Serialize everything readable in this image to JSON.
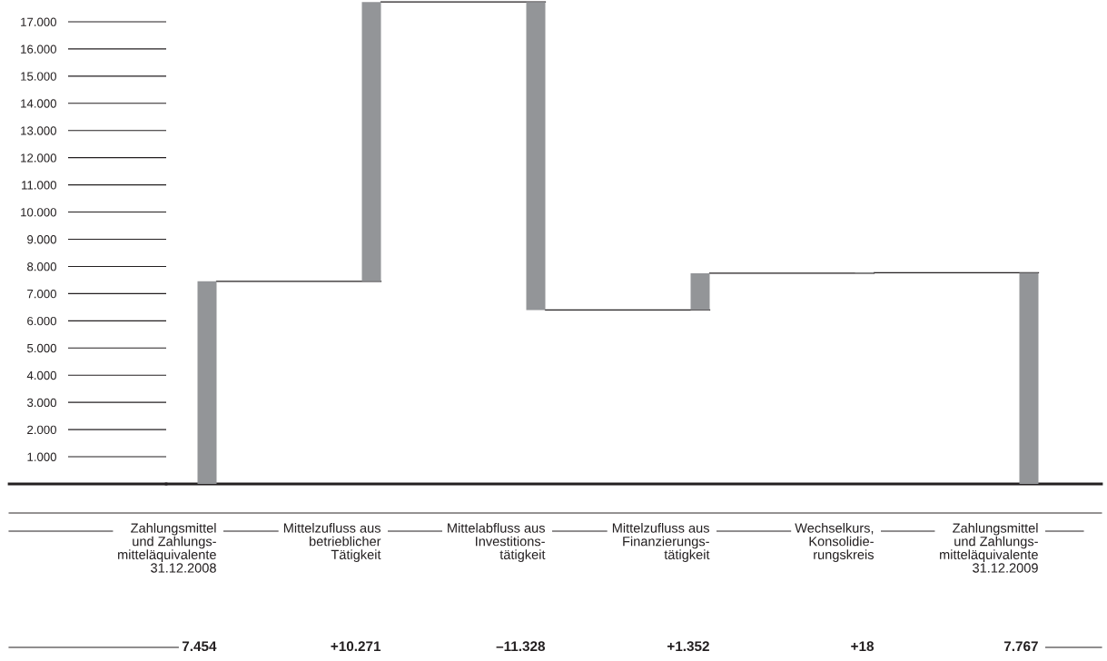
{
  "chart_data": {
    "type": "bar",
    "categories": [
      "Zahlungsmittel\nund Zahlungs-\nmitteläquivalente\n31.12.2008",
      "Mittelzufluss aus\nbetrieblicher\nTätigkeit",
      "Mittelabfluss aus\nInvestitions-\ntätigkeit",
      "Mittelzufluss aus\nFinanzierungs-\ntätigkeit",
      "Wechselkurs,\nKonsolidie-\nrungskreis",
      "Zahlungsmittel\nund Zahlungs-\nmitteläquivalente\n31.12.2009"
    ],
    "values": [
      7454,
      10271,
      -11328,
      1352,
      18,
      7767
    ],
    "base": [
      0,
      7454,
      17725,
      6397,
      7749,
      0
    ],
    "value_labels": [
      "7.454",
      "+10.271",
      "–11.328",
      "+1.352",
      "+18",
      "7.767"
    ],
    "color": "#939598",
    "ylim": [
      0,
      17800
    ],
    "yticks": [
      {
        "value": 1000,
        "label": "1.000"
      },
      {
        "value": 2000,
        "label": "2.000"
      },
      {
        "value": 3000,
        "label": "3.000"
      },
      {
        "value": 4000,
        "label": "4.000"
      },
      {
        "value": 5000,
        "label": "5.000"
      },
      {
        "value": 6000,
        "label": "6.000"
      },
      {
        "value": 7000,
        "label": "7.000"
      },
      {
        "value": 8000,
        "label": "8.000"
      },
      {
        "value": 9000,
        "label": "9.000"
      },
      {
        "value": 10000,
        "label": "10.000"
      },
      {
        "value": 11000,
        "label": "11.000"
      },
      {
        "value": 12000,
        "label": "12.000"
      },
      {
        "value": 13000,
        "label": "13.000"
      },
      {
        "value": 14000,
        "label": "14.000"
      },
      {
        "value": 15000,
        "label": "15.000"
      },
      {
        "value": 16000,
        "label": "16.000"
      },
      {
        "value": 17000,
        "label": "17.000"
      }
    ],
    "grid": false,
    "legend": false
  }
}
